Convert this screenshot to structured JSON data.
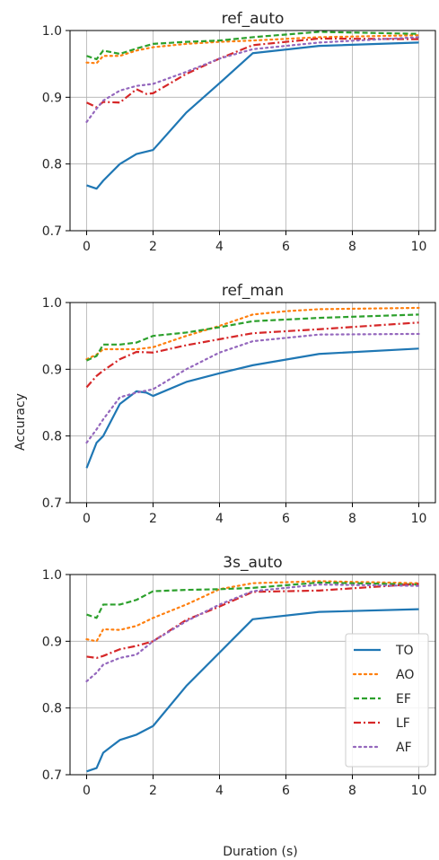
{
  "figure": {
    "ylabel": "Accuracy",
    "xlabel": "Duration (s)"
  },
  "chart_data": [
    {
      "type": "line",
      "title": "ref_auto",
      "xlim": [
        -0.5,
        10.5
      ],
      "ylim": [
        0.7,
        1.0
      ],
      "xticks": [
        "0",
        "2",
        "4",
        "6",
        "8",
        "10"
      ],
      "yticks": [
        "0.7",
        "0.8",
        "0.9",
        "1.0"
      ],
      "grid": true,
      "series": [
        {
          "name": "TO",
          "color": "#1f77b4",
          "dash": "solid",
          "x": [
            0,
            0.3,
            0.5,
            1,
            1.5,
            2,
            3,
            4,
            5,
            7,
            10
          ],
          "y": [
            0.768,
            0.763,
            0.775,
            0.8,
            0.815,
            0.821,
            0.877,
            0.921,
            0.966,
            0.977,
            0.982
          ]
        },
        {
          "name": "AO",
          "color": "#ff7f0e",
          "dash": "dotted",
          "x": [
            0,
            0.3,
            0.5,
            1,
            1.5,
            2,
            3,
            4,
            5,
            7,
            10
          ],
          "y": [
            0.952,
            0.951,
            0.962,
            0.962,
            0.97,
            0.975,
            0.98,
            0.983,
            0.985,
            0.99,
            0.993
          ]
        },
        {
          "name": "EF",
          "color": "#2ca02c",
          "dash": "dashed",
          "x": [
            0,
            0.3,
            0.5,
            0.7,
            1,
            1.5,
            2,
            3,
            4,
            5,
            7,
            10
          ],
          "y": [
            0.962,
            0.957,
            0.97,
            0.968,
            0.965,
            0.973,
            0.98,
            0.983,
            0.985,
            0.99,
            0.998,
            0.995
          ]
        },
        {
          "name": "LF",
          "color": "#d62728",
          "dash": "dashdot",
          "x": [
            0,
            0.3,
            0.5,
            1,
            1.5,
            1.8,
            2,
            3,
            4,
            5,
            7,
            10
          ],
          "y": [
            0.892,
            0.885,
            0.893,
            0.892,
            0.912,
            0.905,
            0.906,
            0.935,
            0.958,
            0.978,
            0.988,
            0.987
          ]
        },
        {
          "name": "AF",
          "color": "#9467bd",
          "dash": "dotted",
          "x": [
            0,
            0.3,
            0.5,
            1,
            1.5,
            2,
            3,
            4,
            5,
            7,
            10
          ],
          "y": [
            0.863,
            0.883,
            0.895,
            0.91,
            0.917,
            0.92,
            0.938,
            0.958,
            0.972,
            0.982,
            0.99
          ]
        }
      ]
    },
    {
      "type": "line",
      "title": "ref_man",
      "xlim": [
        -0.5,
        10.5
      ],
      "ylim": [
        0.7,
        1.0
      ],
      "xticks": [
        "0",
        "2",
        "4",
        "6",
        "8",
        "10"
      ],
      "yticks": [
        "0.7",
        "0.8",
        "0.9",
        "1.0"
      ],
      "grid": true,
      "series": [
        {
          "name": "TO",
          "color": "#1f77b4",
          "dash": "solid",
          "x": [
            0,
            0.3,
            0.5,
            1,
            1.5,
            1.8,
            2,
            3,
            4,
            5,
            7,
            10
          ],
          "y": [
            0.752,
            0.79,
            0.8,
            0.848,
            0.867,
            0.865,
            0.86,
            0.881,
            0.894,
            0.906,
            0.923,
            0.931
          ]
        },
        {
          "name": "AO",
          "color": "#ff7f0e",
          "dash": "dotted",
          "x": [
            0,
            0.3,
            0.5,
            1,
            1.5,
            2,
            3,
            4,
            5,
            6,
            7,
            10
          ],
          "y": [
            0.915,
            0.922,
            0.93,
            0.93,
            0.93,
            0.933,
            0.95,
            0.965,
            0.982,
            0.987,
            0.99,
            0.992
          ]
        },
        {
          "name": "EF",
          "color": "#2ca02c",
          "dash": "dashed",
          "x": [
            0,
            0.3,
            0.5,
            1,
            1.5,
            2,
            3,
            4,
            5,
            7,
            10
          ],
          "y": [
            0.913,
            0.92,
            0.937,
            0.937,
            0.94,
            0.95,
            0.955,
            0.963,
            0.972,
            0.977,
            0.982
          ]
        },
        {
          "name": "LF",
          "color": "#d62728",
          "dash": "dashdot",
          "x": [
            0,
            0.3,
            0.5,
            1,
            1.5,
            2,
            3,
            4,
            5,
            7,
            10
          ],
          "y": [
            0.873,
            0.89,
            0.898,
            0.915,
            0.926,
            0.925,
            0.936,
            0.945,
            0.954,
            0.96,
            0.97
          ]
        },
        {
          "name": "AF",
          "color": "#9467bd",
          "dash": "dotted",
          "x": [
            0,
            0.3,
            0.5,
            1,
            1.5,
            2,
            3,
            4,
            5,
            7,
            10
          ],
          "y": [
            0.79,
            0.81,
            0.825,
            0.858,
            0.865,
            0.87,
            0.9,
            0.925,
            0.942,
            0.952,
            0.953
          ]
        }
      ]
    },
    {
      "type": "line",
      "title": "3s_auto",
      "xlim": [
        -0.5,
        10.5
      ],
      "ylim": [
        0.7,
        1.0
      ],
      "xticks": [
        "0",
        "2",
        "4",
        "6",
        "8",
        "10"
      ],
      "yticks": [
        "0.7",
        "0.8",
        "0.9",
        "1.0"
      ],
      "grid": true,
      "legend": "center-right",
      "series": [
        {
          "name": "TO",
          "color": "#1f77b4",
          "dash": "solid",
          "x": [
            0,
            0.3,
            0.5,
            1,
            1.5,
            2,
            3,
            4,
            5,
            7,
            10
          ],
          "y": [
            0.705,
            0.71,
            0.733,
            0.752,
            0.76,
            0.773,
            0.833,
            0.883,
            0.933,
            0.944,
            0.948
          ]
        },
        {
          "name": "AO",
          "color": "#ff7f0e",
          "dash": "dotted",
          "x": [
            0,
            0.3,
            0.5,
            1,
            1.5,
            2,
            3,
            4,
            5,
            7,
            10
          ],
          "y": [
            0.903,
            0.9,
            0.918,
            0.917,
            0.923,
            0.935,
            0.955,
            0.978,
            0.987,
            0.99,
            0.987
          ]
        },
        {
          "name": "EF",
          "color": "#2ca02c",
          "dash": "dashed",
          "x": [
            0,
            0.3,
            0.5,
            1,
            1.5,
            2,
            3,
            4,
            5,
            7,
            10
          ],
          "y": [
            0.94,
            0.935,
            0.955,
            0.955,
            0.962,
            0.975,
            0.977,
            0.978,
            0.98,
            0.988,
            0.985
          ]
        },
        {
          "name": "LF",
          "color": "#d62728",
          "dash": "dashdot",
          "x": [
            0,
            0.3,
            0.5,
            1,
            1.5,
            2,
            3,
            4,
            5,
            7,
            10
          ],
          "y": [
            0.877,
            0.875,
            0.878,
            0.888,
            0.893,
            0.9,
            0.932,
            0.952,
            0.974,
            0.976,
            0.986
          ]
        },
        {
          "name": "AF",
          "color": "#9467bd",
          "dash": "dotted",
          "x": [
            0,
            0.3,
            0.5,
            1,
            1.5,
            2,
            3,
            4,
            5,
            7,
            10
          ],
          "y": [
            0.84,
            0.853,
            0.865,
            0.875,
            0.88,
            0.9,
            0.93,
            0.955,
            0.975,
            0.985,
            0.983
          ]
        }
      ]
    }
  ]
}
